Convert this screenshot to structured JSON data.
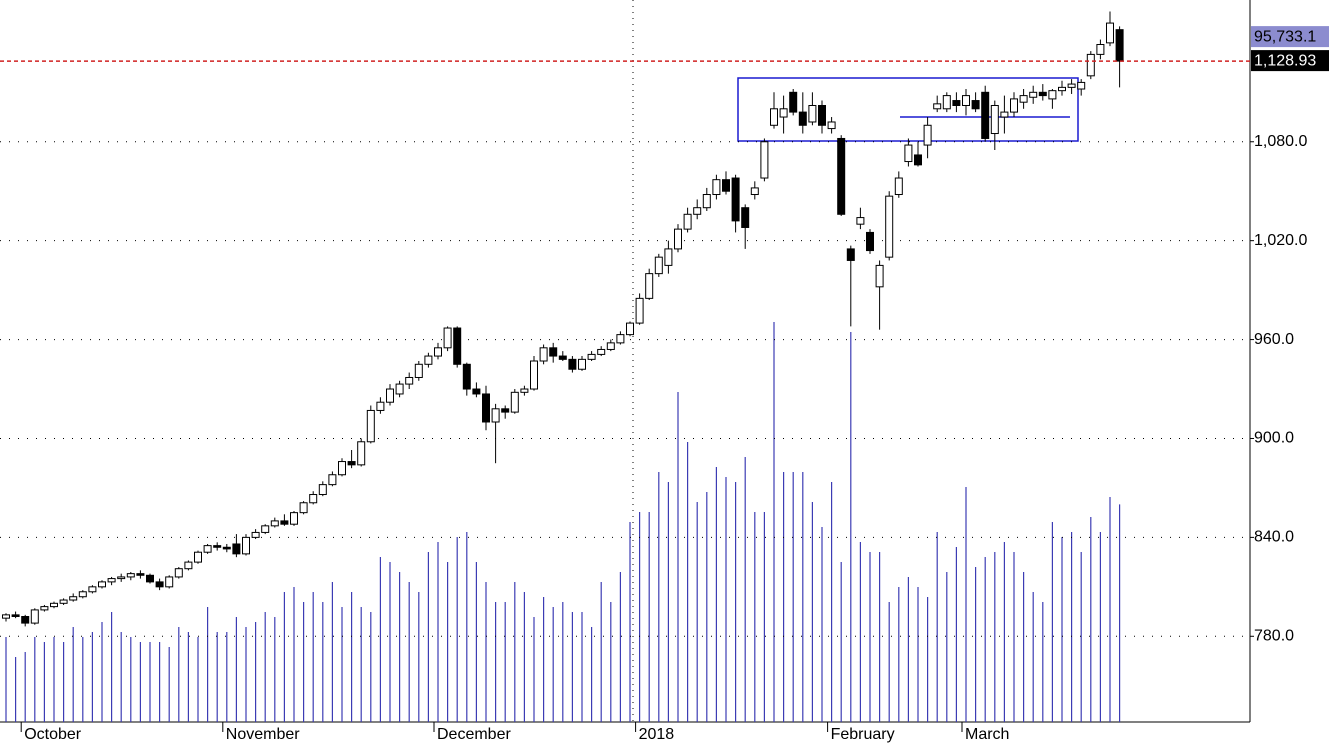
{
  "chart_data": {
    "type": "candlestick",
    "categories": [
      null,
      null,
      "October",
      null,
      null,
      null,
      null,
      null,
      null,
      null,
      null,
      null,
      null,
      null,
      null,
      null,
      null,
      null,
      null,
      null,
      null,
      null,
      null,
      "November",
      null,
      null,
      null,
      null,
      null,
      null,
      null,
      null,
      null,
      null,
      null,
      null,
      null,
      null,
      null,
      null,
      null,
      null,
      null,
      null,
      null,
      "December",
      null,
      null,
      null,
      null,
      null,
      null,
      null,
      null,
      null,
      null,
      null,
      null,
      null,
      null,
      null,
      null,
      null,
      null,
      null,
      null,
      "2018",
      null,
      null,
      null,
      null,
      null,
      null,
      null,
      null,
      null,
      null,
      null,
      null,
      null,
      null,
      null,
      null,
      null,
      null,
      null,
      "February",
      null,
      null,
      null,
      null,
      null,
      null,
      null,
      null,
      null,
      null,
      null,
      null,
      null,
      "March",
      null,
      null,
      null,
      null,
      null,
      null,
      null,
      null,
      null,
      null,
      null,
      null,
      null,
      null,
      null,
      null
    ],
    "open": [
      791,
      793,
      792,
      788,
      796,
      798,
      800,
      802,
      804,
      807,
      810,
      813,
      815,
      816,
      818,
      817,
      813,
      810,
      816,
      821,
      825,
      831,
      835,
      834,
      836,
      830,
      840,
      843,
      847,
      850,
      848,
      855,
      861,
      866,
      872,
      878,
      886,
      884,
      898,
      917,
      922,
      927,
      933,
      937,
      945,
      950,
      955,
      967,
      945,
      930,
      927,
      910,
      918,
      916,
      928,
      930,
      947,
      955,
      950,
      948,
      942,
      948,
      951,
      954,
      958,
      963,
      970,
      985,
      1000,
      1005,
      1015,
      1027,
      1036,
      1040,
      1048,
      1057,
      1058,
      1040,
      1048,
      1058,
      1090,
      1095,
      1110,
      1098,
      1092,
      1102,
      1088,
      1082,
      1015,
      1030,
      1025,
      992,
      1010,
      1048,
      1068,
      1072,
      1078,
      1100,
      1100,
      1105,
      1102,
      1105,
      1110,
      1085,
      1095,
      1098,
      1104,
      1107,
      1110,
      1106,
      1111,
      1113,
      1112,
      1120,
      1133,
      1140,
      1148
    ],
    "high": [
      794,
      795,
      793,
      797,
      799,
      801,
      803,
      806,
      808,
      811,
      814,
      816,
      818,
      819,
      820,
      818,
      815,
      817,
      822,
      826,
      832,
      836,
      837,
      836,
      842,
      842,
      845,
      848,
      852,
      854,
      856,
      862,
      868,
      874,
      880,
      888,
      893,
      900,
      920,
      925,
      933,
      935,
      940,
      947,
      952,
      958,
      968,
      968,
      946,
      934,
      932,
      921,
      920,
      930,
      932,
      950,
      957,
      958,
      953,
      950,
      950,
      953,
      956,
      960,
      965,
      971,
      988,
      1003,
      1012,
      1020,
      1030,
      1040,
      1045,
      1052,
      1060,
      1062,
      1060,
      1042,
      1056,
      1082,
      1110,
      1108,
      1112,
      1110,
      1110,
      1105,
      1095,
      1084,
      1017,
      1040,
      1027,
      1008,
      1050,
      1062,
      1082,
      1080,
      1095,
      1108,
      1110,
      1110,
      1112,
      1110,
      1114,
      1105,
      1108,
      1110,
      1112,
      1114,
      1115,
      1112,
      1117,
      1118,
      1118,
      1135,
      1142,
      1159,
      1150
    ],
    "low": [
      789,
      791,
      786,
      787,
      795,
      797,
      799,
      801,
      803,
      806,
      809,
      811,
      813,
      814,
      815,
      812,
      808,
      809,
      815,
      820,
      824,
      830,
      832,
      831,
      828,
      829,
      839,
      842,
      846,
      847,
      847,
      854,
      860,
      865,
      871,
      877,
      882,
      883,
      897,
      915,
      920,
      925,
      930,
      935,
      943,
      948,
      953,
      943,
      926,
      925,
      905,
      885,
      912,
      915,
      926,
      929,
      945,
      946,
      947,
      940,
      941,
      947,
      950,
      953,
      957,
      962,
      969,
      984,
      998,
      1000,
      1013,
      1025,
      1033,
      1038,
      1045,
      1048,
      1025,
      1015,
      1045,
      1056,
      1088,
      1085,
      1096,
      1085,
      1090,
      1085,
      1085,
      1035,
      968,
      1027,
      1012,
      966,
      1008,
      1046,
      1065,
      1065,
      1070,
      1098,
      1098,
      1098,
      1096,
      1098,
      1080,
      1075,
      1085,
      1095,
      1100,
      1103,
      1105,
      1100,
      1108,
      1109,
      1108,
      1118,
      1130,
      1138,
      1113
    ],
    "close": [
      793,
      792,
      788,
      796,
      798,
      800,
      802,
      804,
      807,
      810,
      813,
      815,
      816,
      818,
      817,
      813,
      810,
      816,
      821,
      825,
      831,
      835,
      834,
      833,
      830,
      840,
      843,
      847,
      850,
      848,
      855,
      861,
      866,
      872,
      878,
      886,
      884,
      898,
      917,
      922,
      930,
      933,
      937,
      945,
      950,
      955,
      967,
      945,
      930,
      927,
      910,
      918,
      916,
      928,
      930,
      947,
      955,
      950,
      948,
      942,
      948,
      951,
      954,
      958,
      963,
      970,
      985,
      1000,
      1010,
      1015,
      1027,
      1036,
      1040,
      1048,
      1057,
      1050,
      1032,
      1028,
      1052,
      1080,
      1100,
      1100,
      1098,
      1090,
      1102,
      1090,
      1092,
      1036,
      1008,
      1034,
      1014,
      1005,
      1047,
      1058,
      1078,
      1066,
      1090,
      1103,
      1108,
      1102,
      1108,
      1100,
      1082,
      1102,
      1098,
      1106,
      1108,
      1110,
      1108,
      1111,
      1113,
      1115,
      1116,
      1133,
      1139,
      1152,
      1128.93
    ],
    "close_label": "1,128.93",
    "volume": {
      "color": "#3c3cb4",
      "vlim": [
        0,
        317680
      ],
      "last_label": "95,733.1",
      "values": [
        37400,
        28600,
        30800,
        37400,
        35200,
        37400,
        35200,
        41800,
        37400,
        39600,
        44000,
        48400,
        39600,
        37400,
        35200,
        35200,
        35200,
        33000,
        41800,
        39600,
        37400,
        50600,
        39600,
        39600,
        46200,
        41800,
        44000,
        48400,
        46200,
        57200,
        59400,
        52800,
        57200,
        52800,
        61600,
        50600,
        57200,
        50600,
        48400,
        72600,
        70400,
        66000,
        61600,
        57200,
        74800,
        79200,
        70400,
        81400,
        83600,
        70400,
        61600,
        52800,
        52800,
        61600,
        57200,
        46200,
        55000,
        50600,
        52800,
        48400,
        48400,
        41800,
        61600,
        52800,
        66000,
        88000,
        92400,
        92400,
        110000,
        105600,
        145200,
        123200,
        96800,
        101200,
        112200,
        107800,
        105600,
        116600,
        92400,
        92400,
        176000,
        110000,
        110000,
        110000,
        96800,
        85800,
        105600,
        70400,
        171600,
        79200,
        74800,
        74800,
        52800,
        59400,
        63800,
        59400,
        55000,
        83600,
        66000,
        77000,
        103400,
        68200,
        72600,
        74800,
        79200,
        74800,
        66000,
        57200,
        52800,
        88000,
        81400,
        83600,
        74800,
        90200,
        83600,
        99000,
        95733.1
      ]
    },
    "ylim": [
      728,
      1166
    ],
    "yticks": [
      {
        "value": 780,
        "label": "780.0"
      },
      {
        "value": 840,
        "label": "840.0"
      },
      {
        "value": 900,
        "label": "900.0"
      },
      {
        "value": 960,
        "label": "960.0"
      },
      {
        "value": 1020,
        "label": "1,020.0"
      },
      {
        "value": 1080,
        "label": "1,080.0"
      }
    ],
    "grid": true,
    "up_color": "#ffffff",
    "down_color": "#000000",
    "last_line_color": "#d02020"
  }
}
